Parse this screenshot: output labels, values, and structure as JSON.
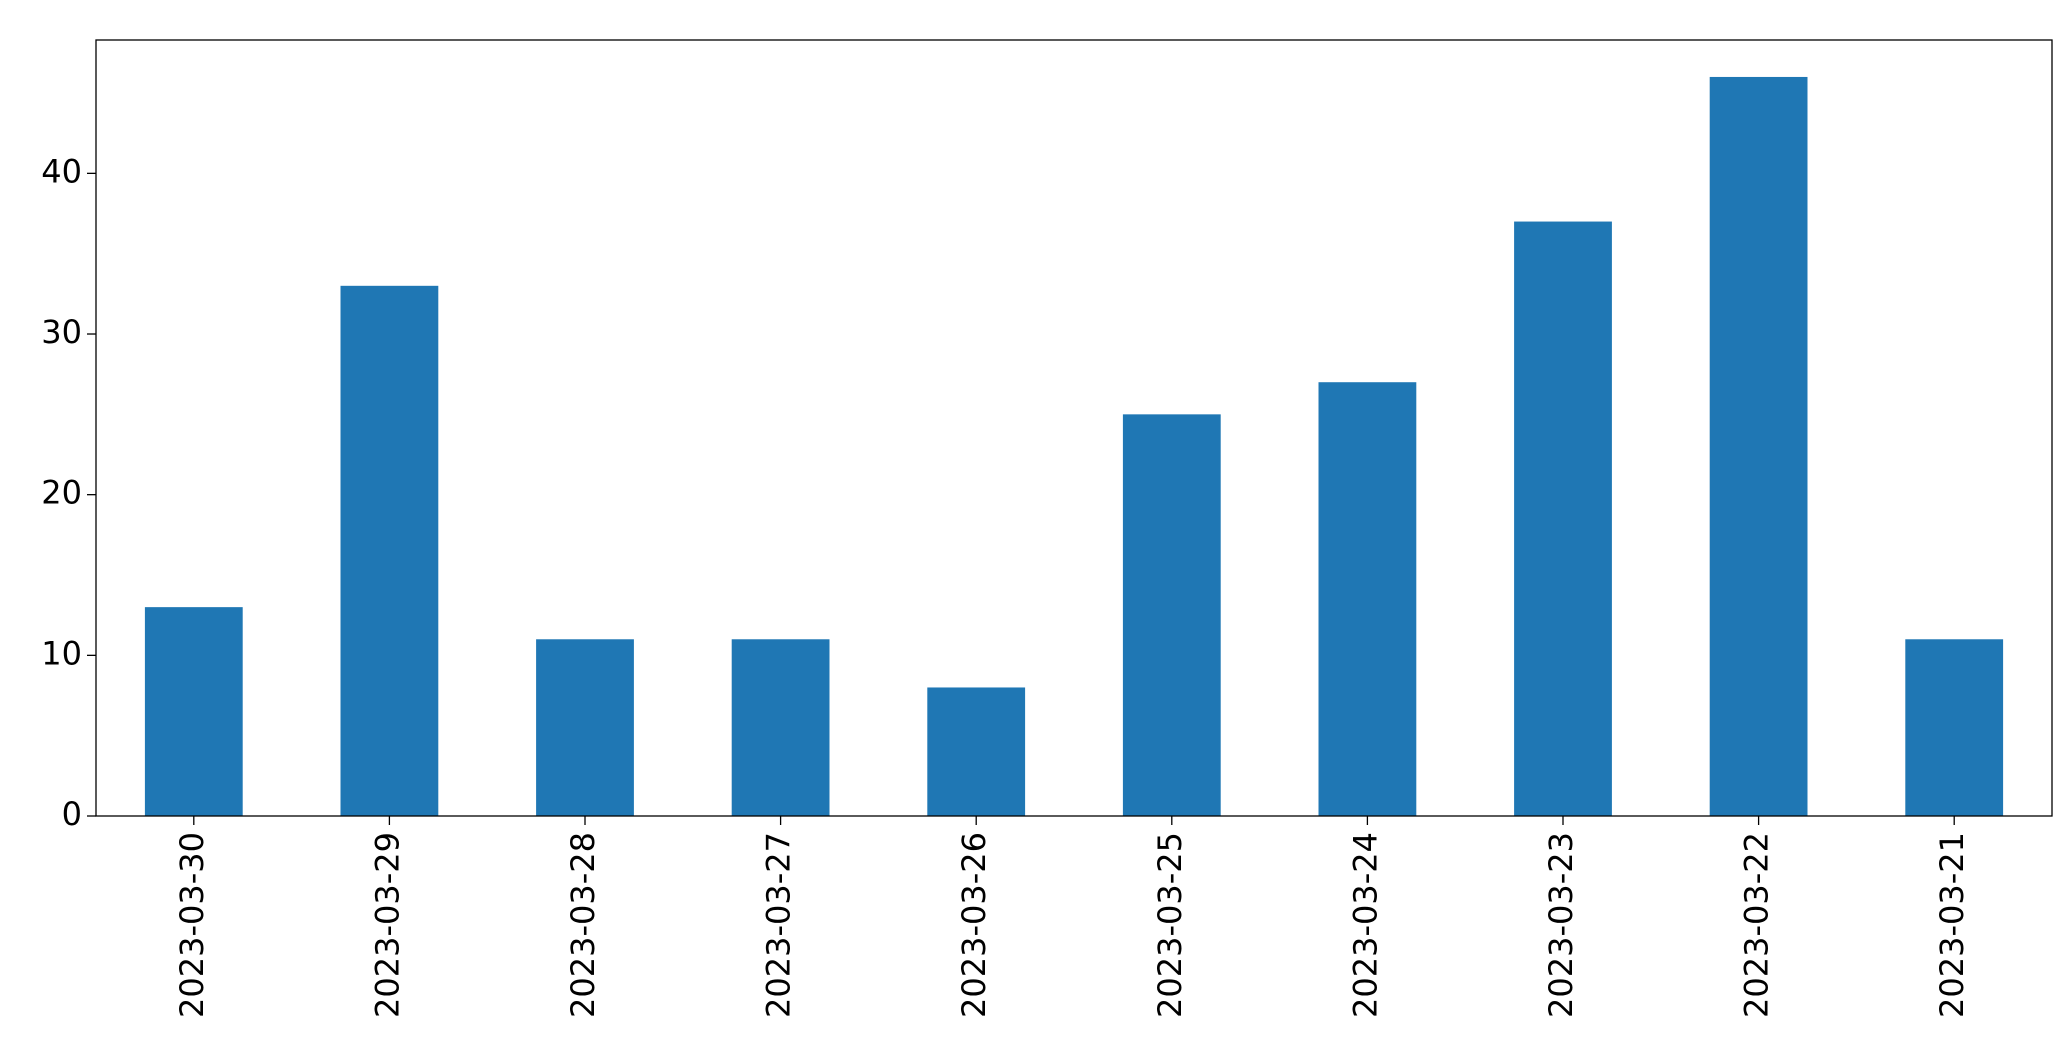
{
  "chart_data": {
    "type": "bar",
    "categories": [
      "2023-03-30",
      "2023-03-29",
      "2023-03-28",
      "2023-03-27",
      "2023-03-26",
      "2023-03-25",
      "2023-03-24",
      "2023-03-23",
      "2023-03-22",
      "2023-03-21"
    ],
    "values": [
      13,
      33,
      11,
      11,
      8,
      25,
      27,
      37,
      46,
      11
    ],
    "color": "#1f77b4",
    "ylim": [
      0,
      48.3
    ],
    "yticks": [
      0,
      10,
      20,
      30,
      40
    ],
    "grid": false
  }
}
